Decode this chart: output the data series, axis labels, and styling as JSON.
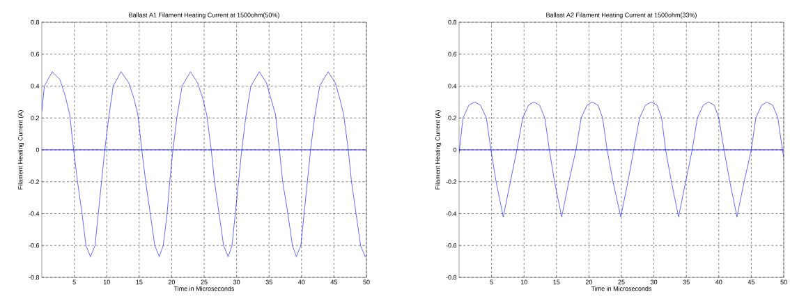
{
  "chart_data": [
    {
      "type": "line",
      "title": "Ballast A1 Filament Heating Current at 1500ohm(50%)",
      "xlabel": "Time in Microseconds",
      "ylabel": "Filament Heating Current (A)",
      "xlim": [
        0,
        50
      ],
      "ylim": [
        -0.8,
        0.8
      ],
      "xticks": [
        5,
        10,
        15,
        20,
        25,
        30,
        35,
        40,
        45,
        50
      ],
      "yticks": [
        -0.8,
        -0.6,
        -0.4,
        -0.2,
        0,
        0.2,
        0.4,
        0.6,
        0.8
      ],
      "grid": true,
      "line_style": "solid",
      "color": "#0000ff",
      "ref_lines": [
        {
          "axis": "y",
          "value": 0,
          "color": "#0000ff"
        }
      ],
      "x": [
        0,
        0.4,
        1.6,
        2.8,
        3.6,
        4.3,
        4.9,
        5.5,
        6.2,
        6.8,
        7.5,
        8.2,
        8.7,
        9.2,
        9.7,
        10.3,
        11.0,
        12.2,
        13.4,
        14.2,
        14.8,
        15.4,
        16.0,
        16.7,
        17.4,
        18.1,
        18.7,
        19.3,
        19.7,
        20.2,
        20.8,
        21.6,
        22.9,
        24.0,
        24.8,
        25.4,
        26.1,
        26.6,
        27.3,
        28.0,
        28.7,
        29.3,
        29.8,
        30.3,
        30.8,
        31.4,
        32.2,
        33.5,
        34.6,
        35.3,
        36.0,
        36.6,
        37.1,
        37.9,
        38.6,
        39.2,
        39.9,
        40.4,
        40.9,
        41.4,
        42.0,
        42.8,
        44.1,
        45.2,
        45.9,
        46.5,
        47.2,
        47.7,
        48.4,
        49.1,
        49.8,
        50
      ],
      "values": [
        0.24,
        0.4,
        0.49,
        0.44,
        0.34,
        0.22,
        0,
        -0.2,
        -0.4,
        -0.6,
        -0.67,
        -0.6,
        -0.4,
        -0.2,
        0,
        0.2,
        0.4,
        0.49,
        0.42,
        0.32,
        0.22,
        0,
        -0.2,
        -0.4,
        -0.6,
        -0.67,
        -0.6,
        -0.4,
        -0.2,
        0,
        0.2,
        0.4,
        0.49,
        0.42,
        0.32,
        0.22,
        0,
        -0.2,
        -0.4,
        -0.6,
        -0.67,
        -0.6,
        -0.4,
        -0.2,
        0,
        0.2,
        0.4,
        0.49,
        0.42,
        0.32,
        0.22,
        0,
        -0.2,
        -0.4,
        -0.6,
        -0.67,
        -0.6,
        -0.4,
        -0.2,
        0,
        0.2,
        0.4,
        0.49,
        0.42,
        0.32,
        0.22,
        0,
        -0.2,
        -0.4,
        -0.6,
        -0.67,
        -0.66
      ]
    },
    {
      "type": "line",
      "title": "Ballast A2 Filament Heating Current at 1500ohm(33%)",
      "xlabel": "Time in Microseconds",
      "ylabel": "Filament Heating Current (A)",
      "xlim": [
        0,
        50
      ],
      "ylim": [
        -0.8,
        0.8
      ],
      "xticks": [
        5,
        10,
        15,
        20,
        25,
        30,
        35,
        40,
        45,
        50
      ],
      "yticks": [
        -0.8,
        -0.6,
        -0.4,
        -0.2,
        0,
        0.2,
        0.4,
        0.6,
        0.8
      ],
      "grid": true,
      "line_style": "solid",
      "color": "#0000ff",
      "ref_lines": [
        {
          "axis": "y",
          "value": 0,
          "color": "#0000ff"
        }
      ],
      "x": [
        0,
        0.6,
        1.5,
        2.4,
        3.3,
        4.2,
        4.9,
        5.7,
        6.8,
        7.9,
        8.9,
        9.8,
        10.7,
        11.5,
        12.4,
        13.2,
        13.9,
        14.7,
        15.8,
        16.9,
        18.0,
        18.8,
        19.7,
        20.5,
        21.4,
        22.1,
        22.8,
        23.7,
        24.9,
        26.0,
        26.9,
        27.8,
        28.7,
        29.6,
        30.5,
        31.2,
        31.8,
        32.7,
        33.8,
        34.9,
        35.9,
        36.7,
        37.6,
        38.4,
        39.3,
        40.0,
        40.8,
        41.7,
        42.8,
        43.9,
        45.0,
        45.7,
        46.6,
        47.4,
        48.3,
        49.1,
        49.8,
        50
      ],
      "values": [
        -0.02,
        0.2,
        0.28,
        0.3,
        0.28,
        0.2,
        0,
        -0.2,
        -0.42,
        -0.2,
        0,
        0.2,
        0.28,
        0.3,
        0.28,
        0.2,
        0,
        -0.2,
        -0.42,
        -0.2,
        0,
        0.2,
        0.28,
        0.3,
        0.28,
        0.2,
        0,
        -0.2,
        -0.42,
        -0.2,
        0,
        0.2,
        0.28,
        0.3,
        0.28,
        0.2,
        0,
        -0.2,
        -0.42,
        -0.2,
        0,
        0.2,
        0.28,
        0.3,
        0.28,
        0.2,
        0,
        -0.2,
        -0.42,
        -0.2,
        0,
        0.2,
        0.28,
        0.3,
        0.28,
        0.2,
        0,
        -0.05
      ]
    }
  ]
}
